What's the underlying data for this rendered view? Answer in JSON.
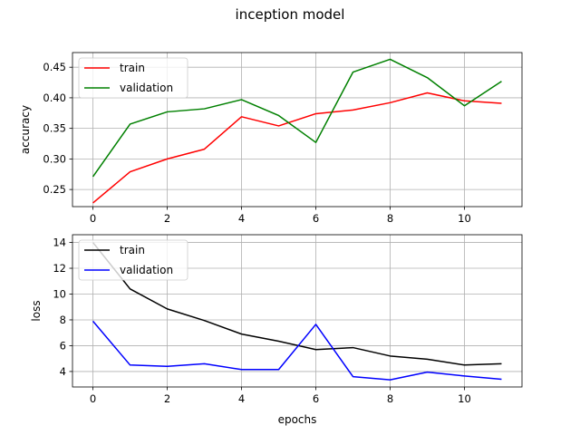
{
  "chart_data": [
    {
      "type": "line",
      "title": "inception model",
      "xlabel": "",
      "ylabel": "accuracy",
      "x": [
        0,
        1,
        2,
        3,
        4,
        5,
        6,
        7,
        8,
        9,
        10,
        11
      ],
      "xlim": [
        -0.55,
        11.55
      ],
      "ylim": [
        0.222,
        0.474
      ],
      "xticks": [
        0,
        2,
        4,
        6,
        8,
        10
      ],
      "yticks": [
        0.25,
        0.3,
        0.35,
        0.4,
        0.45
      ],
      "ytick_labels": [
        "0.25",
        "0.30",
        "0.35",
        "0.40",
        "0.45"
      ],
      "grid": true,
      "legend_position": "top-left",
      "series": [
        {
          "name": "train",
          "color": "#ff0000",
          "values": [
            0.228,
            0.279,
            0.3,
            0.316,
            0.369,
            0.354,
            0.374,
            0.38,
            0.392,
            0.408,
            0.395,
            0.391
          ]
        },
        {
          "name": "validation",
          "color": "#008000",
          "values": [
            0.271,
            0.357,
            0.377,
            0.382,
            0.397,
            0.371,
            0.327,
            0.442,
            0.463,
            0.433,
            0.387,
            0.427
          ]
        }
      ]
    },
    {
      "type": "line",
      "title": "",
      "xlabel": "epochs",
      "ylabel": "loss",
      "x": [
        0,
        1,
        2,
        3,
        4,
        5,
        6,
        7,
        8,
        9,
        10,
        11
      ],
      "xlim": [
        -0.55,
        11.55
      ],
      "ylim": [
        2.8,
        14.6
      ],
      "xticks": [
        0,
        2,
        4,
        6,
        8,
        10
      ],
      "yticks": [
        4,
        6,
        8,
        10,
        12,
        14
      ],
      "ytick_labels": [
        "4",
        "6",
        "8",
        "10",
        "12",
        "14"
      ],
      "grid": true,
      "legend_position": "top-left",
      "series": [
        {
          "name": "train",
          "color": "#000000",
          "values": [
            14.0,
            10.4,
            8.85,
            7.95,
            6.9,
            6.35,
            5.7,
            5.85,
            5.2,
            4.95,
            4.5,
            4.6
          ]
        },
        {
          "name": "validation",
          "color": "#0000ff",
          "values": [
            7.9,
            4.5,
            4.4,
            4.6,
            4.15,
            4.15,
            7.65,
            3.6,
            3.35,
            3.95,
            3.65,
            3.4
          ]
        }
      ]
    }
  ]
}
